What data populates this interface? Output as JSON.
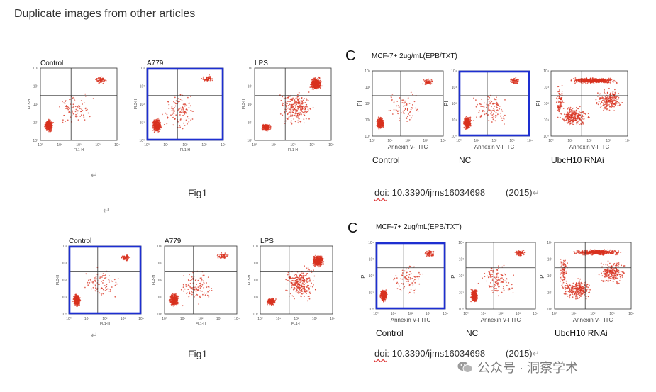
{
  "page": {
    "title": "Duplicate images from other articles"
  },
  "figure_label": "Fig1",
  "doi": {
    "prefix": "doi",
    "text": ": 10.3390/ijms16034698",
    "year": "(2015)"
  },
  "return_mark": "↵",
  "watermark": "公众号 · 洞察学术",
  "left_panels": {
    "labels": [
      "Control",
      "A779",
      "LPS"
    ],
    "x_axis": "FL1-H",
    "y_axis": "FL3-H",
    "ticks": [
      "10⁰",
      "10¹",
      "10²",
      "10³",
      "10⁴"
    ]
  },
  "right_panels": {
    "letter": "C",
    "header": "MCF-7+ 2ug/mL(EPB/TXT)",
    "labels": [
      "Control",
      "NC",
      "UbcH10 RNAi"
    ],
    "x_axis": "Annexin V-FITC",
    "y_axis": "PI",
    "ticks": [
      "10⁰",
      "10¹",
      "10²",
      "10³",
      "10⁴"
    ]
  },
  "colors": {
    "dots": "#d8321f",
    "highlight": "#1d2fd1"
  }
}
